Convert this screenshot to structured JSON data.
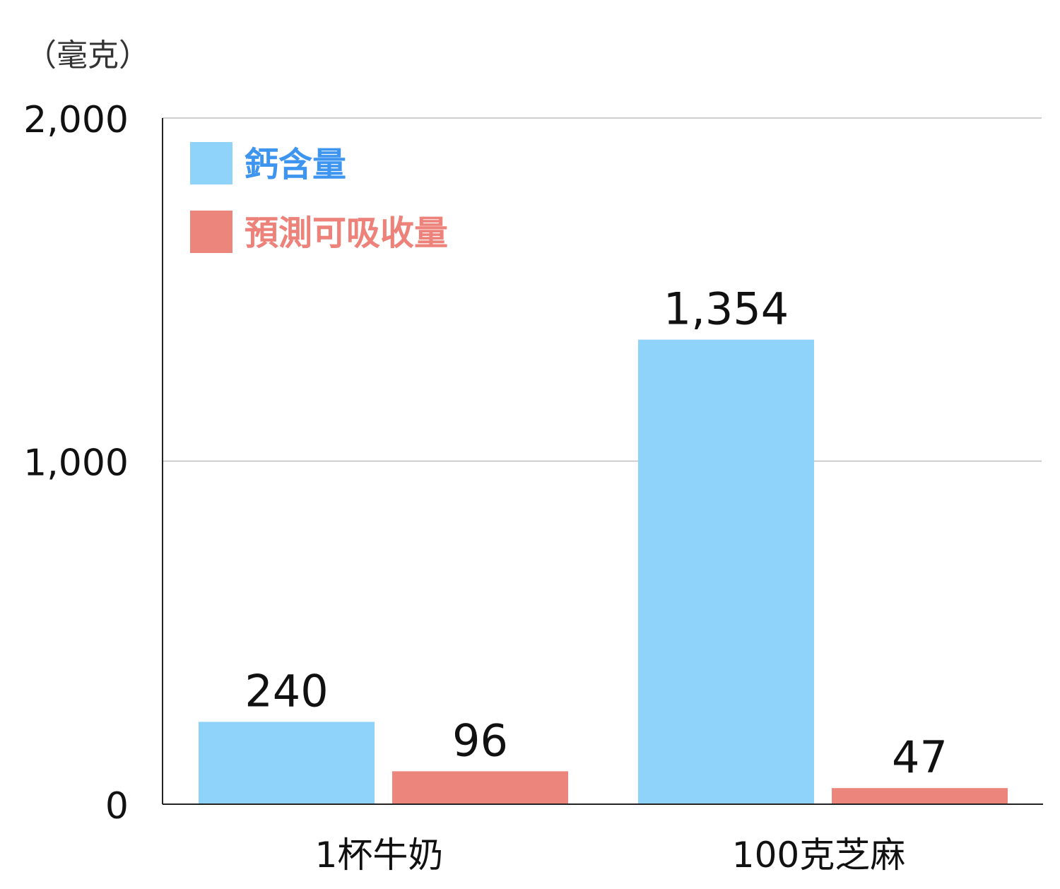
{
  "chart_data": {
    "type": "bar",
    "title": "",
    "xlabel": "",
    "ylabel": "（毫克）",
    "ylim": [
      0,
      2000
    ],
    "yticks": [
      0,
      1000,
      2000
    ],
    "ytick_labels": [
      "0",
      "1,000",
      "2,000"
    ],
    "grid": true,
    "legend_position": "top-left",
    "categories": [
      "1杯牛奶",
      "100克芝麻"
    ],
    "series": [
      {
        "name": "鈣含量",
        "values": [
          240,
          1354
        ],
        "labels": [
          "240",
          "1,354"
        ],
        "color": "#8fd3fb",
        "text_color": "#3d95ef"
      },
      {
        "name": "預測可吸收量",
        "values": [
          96,
          47
        ],
        "labels": [
          "96",
          "47"
        ],
        "color": "#ec857b",
        "text_color": "#ec8279"
      }
    ]
  }
}
